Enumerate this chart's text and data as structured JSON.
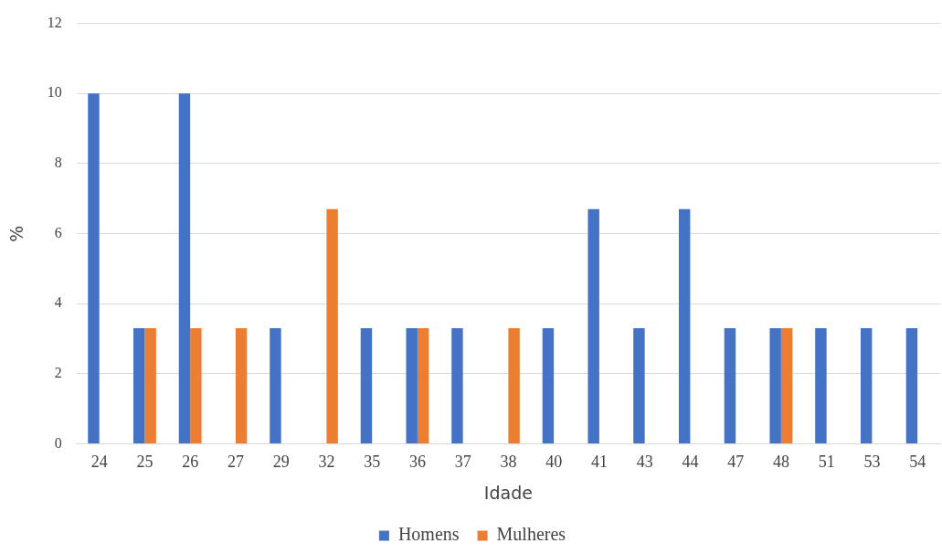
{
  "chart_data": {
    "type": "bar",
    "xlabel": "Idade",
    "ylabel": "%",
    "categories": [
      "24",
      "25",
      "26",
      "27",
      "29",
      "32",
      "35",
      "36",
      "37",
      "38",
      "40",
      "41",
      "43",
      "44",
      "47",
      "48",
      "51",
      "53",
      "54"
    ],
    "series": [
      {
        "name": "Homens",
        "color": "#4472c4",
        "values": [
          10,
          3.3,
          10,
          0,
          3.3,
          0,
          3.3,
          3.3,
          3.3,
          0,
          3.3,
          6.7,
          3.3,
          6.7,
          3.3,
          3.3,
          3.3,
          3.3,
          3.3
        ]
      },
      {
        "name": "Mulheres",
        "color": "#ed7d31",
        "values": [
          0,
          3.3,
          3.3,
          3.3,
          0,
          6.7,
          0,
          3.3,
          0,
          3.3,
          0,
          0,
          0,
          0,
          0,
          3.3,
          0,
          0,
          0
        ]
      }
    ],
    "ylim": [
      0,
      12
    ],
    "yticks": [
      0,
      2,
      4,
      6,
      8,
      10,
      12
    ],
    "grid": "y",
    "legend": "bottom"
  }
}
